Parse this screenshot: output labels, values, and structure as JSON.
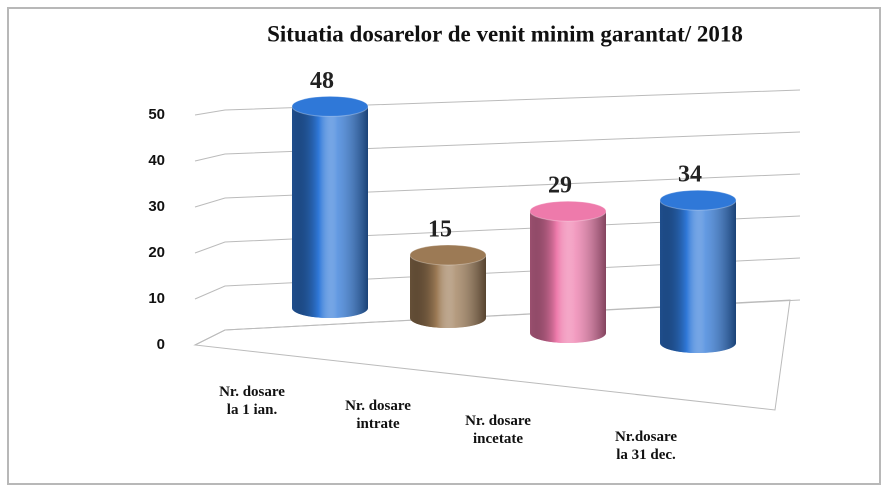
{
  "chart_data": {
    "type": "bar",
    "title": "Situatia dosarelor  de venit minim garantat/ 2018",
    "categories": [
      "Nr. dosare\nla 1 ian.",
      "Nr. dosare\nintrate",
      "Nr. dosare\nincetate",
      "Nr.dosare\nla 31 dec."
    ],
    "values": [
      48,
      15,
      29,
      34
    ],
    "colors": [
      "#2f78d8",
      "#9c7a55",
      "#ee7aab",
      "#2f78d8"
    ],
    "ylim": [
      0,
      50
    ],
    "yticks": [
      0,
      10,
      20,
      30,
      40,
      50
    ],
    "grid": true
  }
}
